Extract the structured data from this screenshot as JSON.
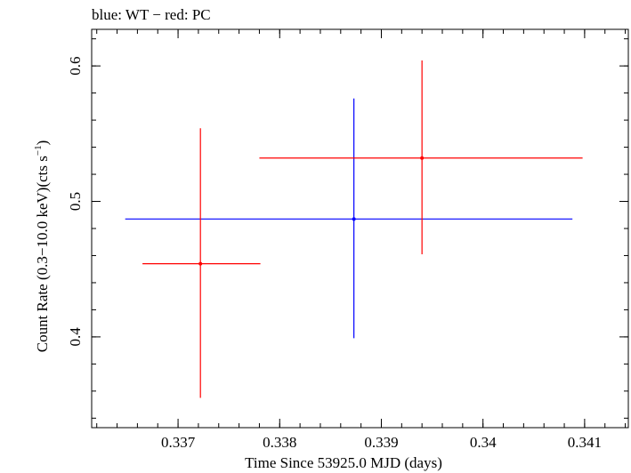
{
  "chart_data": {
    "type": "scatter",
    "title": "blue: WT − red: PC",
    "xlabel": "Time Since 53925.0 MJD (days)",
    "ylabel_main": "Count Rate (0.3−10.0 keV)(cts s",
    "ylabel_sup": "−1",
    "ylabel_end": ")",
    "xlim": [
      0.33615,
      0.34143
    ],
    "ylim": [
      0.333,
      0.627
    ],
    "xticks_major": [
      0.337,
      0.338,
      0.339,
      0.34,
      0.341
    ],
    "xtick_labels": [
      "0.337",
      "0.338",
      "0.339",
      "0.34",
      "0.341"
    ],
    "yticks_major": [
      0.4,
      0.5,
      0.6
    ],
    "ytick_labels": [
      "0.4",
      "0.5",
      "0.6"
    ],
    "xminor_step": 0.0002,
    "yminor_step": 0.02,
    "grid": false,
    "series": [
      {
        "color": "#0000ff",
        "points": [
          {
            "x": 0.33873,
            "y": 0.487,
            "xlo": 0.33648,
            "xhi": 0.34088,
            "ylo": 0.399,
            "yhi": 0.576
          }
        ]
      },
      {
        "color": "#ff0000",
        "points": [
          {
            "x": 0.33722,
            "y": 0.454,
            "xlo": 0.33665,
            "xhi": 0.33781,
            "ylo": 0.355,
            "yhi": 0.554
          },
          {
            "x": 0.3394,
            "y": 0.532,
            "xlo": 0.3378,
            "xhi": 0.34098,
            "ylo": 0.461,
            "yhi": 0.604
          }
        ]
      }
    ]
  }
}
